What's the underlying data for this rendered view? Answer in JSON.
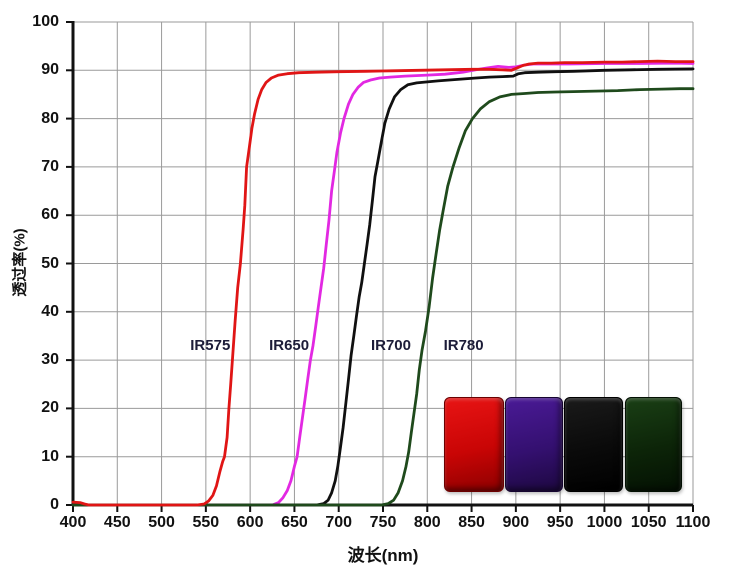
{
  "chart_data": {
    "type": "line",
    "title": "",
    "xlabel": "波长(nm)",
    "ylabel": "透过率(%)",
    "xlim": [
      400,
      1100
    ],
    "ylim": [
      0,
      100
    ],
    "x_ticks": [
      400,
      450,
      500,
      550,
      600,
      650,
      700,
      750,
      800,
      850,
      900,
      950,
      1000,
      1050,
      1100
    ],
    "y_ticks": [
      0,
      10,
      20,
      30,
      40,
      50,
      60,
      70,
      80,
      90,
      100
    ],
    "grid": true,
    "grid_color": "#9a9a9a",
    "axis_color": "#111111",
    "legend_position": "none",
    "annotation_color": "#1c1c38",
    "series": [
      {
        "name": "IR650",
        "color": "#e228e2",
        "points": [
          [
            400,
            0
          ],
          [
            500,
            0
          ],
          [
            600,
            0
          ],
          [
            625,
            0
          ],
          [
            632,
            0.5
          ],
          [
            637,
            1.5
          ],
          [
            642,
            3
          ],
          [
            646,
            5
          ],
          [
            650,
            8
          ],
          [
            653,
            10
          ],
          [
            656,
            14
          ],
          [
            659,
            18
          ],
          [
            662,
            22
          ],
          [
            665,
            26
          ],
          [
            668,
            30
          ],
          [
            671,
            33
          ],
          [
            674,
            37
          ],
          [
            677,
            41
          ],
          [
            680,
            45
          ],
          [
            683,
            49
          ],
          [
            686,
            54
          ],
          [
            689,
            59
          ],
          [
            692,
            65
          ],
          [
            695,
            69
          ],
          [
            698,
            73
          ],
          [
            702,
            77
          ],
          [
            706,
            80
          ],
          [
            711,
            83
          ],
          [
            716,
            85
          ],
          [
            722,
            86.5
          ],
          [
            728,
            87.5
          ],
          [
            736,
            88
          ],
          [
            746,
            88.4
          ],
          [
            758,
            88.6
          ],
          [
            775,
            88.8
          ],
          [
            800,
            89
          ],
          [
            820,
            89.2
          ],
          [
            840,
            89.6
          ],
          [
            855,
            90.1
          ],
          [
            868,
            90.5
          ],
          [
            880,
            90.8
          ],
          [
            892,
            90.6
          ],
          [
            900,
            90.7
          ],
          [
            910,
            91.1
          ],
          [
            920,
            91.3
          ],
          [
            940,
            91.3
          ],
          [
            960,
            91.3
          ],
          [
            1000,
            91.4
          ],
          [
            1040,
            91.4
          ],
          [
            1080,
            91.5
          ],
          [
            1100,
            91.4
          ]
        ]
      },
      {
        "name": "IR700",
        "color": "#101010",
        "points": [
          [
            400,
            0
          ],
          [
            600,
            0
          ],
          [
            675,
            0
          ],
          [
            683,
            0.3
          ],
          [
            688,
            1
          ],
          [
            692,
            2.5
          ],
          [
            696,
            5
          ],
          [
            699,
            8
          ],
          [
            702,
            12
          ],
          [
            705,
            16
          ],
          [
            708,
            21
          ],
          [
            711,
            26
          ],
          [
            714,
            31
          ],
          [
            717,
            35
          ],
          [
            720,
            39
          ],
          [
            723,
            43
          ],
          [
            726,
            46
          ],
          [
            729,
            50
          ],
          [
            732,
            54
          ],
          [
            735,
            58
          ],
          [
            738,
            63
          ],
          [
            741,
            68
          ],
          [
            744,
            71
          ],
          [
            748,
            75
          ],
          [
            752,
            79
          ],
          [
            757,
            82
          ],
          [
            763,
            84.5
          ],
          [
            770,
            86
          ],
          [
            778,
            87
          ],
          [
            788,
            87.4
          ],
          [
            800,
            87.6
          ],
          [
            812,
            87.8
          ],
          [
            825,
            88
          ],
          [
            840,
            88.2
          ],
          [
            855,
            88.4
          ],
          [
            870,
            88.6
          ],
          [
            885,
            88.7
          ],
          [
            897,
            88.8
          ],
          [
            903,
            89.3
          ],
          [
            910,
            89.5
          ],
          [
            925,
            89.6
          ],
          [
            945,
            89.7
          ],
          [
            965,
            89.8
          ],
          [
            1000,
            90
          ],
          [
            1030,
            90.1
          ],
          [
            1060,
            90.2
          ],
          [
            1100,
            90.3
          ]
        ]
      },
      {
        "name": "IR780",
        "color": "#1f4a1c",
        "points": [
          [
            400,
            0
          ],
          [
            500,
            0
          ],
          [
            560,
            0
          ],
          [
            650,
            0
          ],
          [
            700,
            0
          ],
          [
            748,
            0
          ],
          [
            756,
            0.3
          ],
          [
            762,
            1
          ],
          [
            767,
            2.5
          ],
          [
            772,
            5
          ],
          [
            776,
            8
          ],
          [
            779,
            11
          ],
          [
            782,
            15
          ],
          [
            785,
            19
          ],
          [
            788,
            23
          ],
          [
            791,
            28
          ],
          [
            794,
            32
          ],
          [
            798,
            36
          ],
          [
            802,
            41
          ],
          [
            806,
            47
          ],
          [
            810,
            52
          ],
          [
            814,
            57
          ],
          [
            818,
            61
          ],
          [
            823,
            66
          ],
          [
            829,
            70
          ],
          [
            836,
            74
          ],
          [
            843,
            77.5
          ],
          [
            851,
            80
          ],
          [
            860,
            82
          ],
          [
            870,
            83.5
          ],
          [
            882,
            84.5
          ],
          [
            895,
            85
          ],
          [
            910,
            85.2
          ],
          [
            925,
            85.4
          ],
          [
            945,
            85.5
          ],
          [
            965,
            85.6
          ],
          [
            990,
            85.7
          ],
          [
            1015,
            85.8
          ],
          [
            1040,
            86
          ],
          [
            1065,
            86.1
          ],
          [
            1085,
            86.2
          ],
          [
            1100,
            86.2
          ]
        ]
      },
      {
        "name": "IR575",
        "color": "#e01515",
        "points": [
          [
            400,
            0.6
          ],
          [
            408,
            0.5
          ],
          [
            413,
            0.2
          ],
          [
            418,
            0
          ],
          [
            460,
            0
          ],
          [
            500,
            0
          ],
          [
            540,
            0
          ],
          [
            548,
            0.2
          ],
          [
            553,
            0.8
          ],
          [
            558,
            2
          ],
          [
            562,
            4
          ],
          [
            566,
            7
          ],
          [
            569,
            9
          ],
          [
            571,
            10
          ],
          [
            574,
            14
          ],
          [
            576,
            20
          ],
          [
            578,
            25
          ],
          [
            580,
            30
          ],
          [
            583,
            38
          ],
          [
            586,
            45
          ],
          [
            589,
            50
          ],
          [
            592,
            57
          ],
          [
            594,
            62
          ],
          [
            596,
            70
          ],
          [
            599,
            74
          ],
          [
            602,
            78
          ],
          [
            605,
            81
          ],
          [
            609,
            84
          ],
          [
            613,
            86
          ],
          [
            618,
            87.5
          ],
          [
            624,
            88.4
          ],
          [
            632,
            89
          ],
          [
            642,
            89.3
          ],
          [
            655,
            89.5
          ],
          [
            675,
            89.6
          ],
          [
            700,
            89.7
          ],
          [
            730,
            89.8
          ],
          [
            760,
            89.9
          ],
          [
            790,
            90
          ],
          [
            820,
            90.1
          ],
          [
            850,
            90.2
          ],
          [
            870,
            90.2
          ],
          [
            885,
            90.1
          ],
          [
            895,
            90
          ],
          [
            900,
            90.4
          ],
          [
            908,
            91
          ],
          [
            915,
            91.3
          ],
          [
            925,
            91.5
          ],
          [
            940,
            91.5
          ],
          [
            955,
            91.6
          ],
          [
            975,
            91.6
          ],
          [
            1000,
            91.7
          ],
          [
            1020,
            91.7
          ],
          [
            1040,
            91.8
          ],
          [
            1060,
            91.9
          ],
          [
            1080,
            91.8
          ],
          [
            1100,
            91.8
          ]
        ]
      }
    ],
    "annotations": [
      {
        "text": "IR575",
        "x": 555,
        "y": 33
      },
      {
        "text": "IR650",
        "x": 644,
        "y": 33
      },
      {
        "text": "IR700",
        "x": 759,
        "y": 33
      },
      {
        "text": "IR780",
        "x": 841,
        "y": 33
      }
    ]
  },
  "swatches": [
    {
      "name": "filter-swatch-red",
      "x_range": [
        819,
        884
      ],
      "y_range": [
        3,
        22.4
      ],
      "colors": [
        "#e81414",
        "#c90505",
        "#8d0000"
      ],
      "border": "#6b0000"
    },
    {
      "name": "filter-swatch-purple",
      "x_range": [
        888,
        951
      ],
      "y_range": [
        3,
        22.4
      ],
      "colors": [
        "#4a1a96",
        "#341070",
        "#1d0840"
      ],
      "border": "#160530"
    },
    {
      "name": "filter-swatch-black",
      "x_range": [
        954,
        1019
      ],
      "y_range": [
        3,
        22.4
      ],
      "colors": [
        "#1a1a1a",
        "#0a0a0a",
        "#000000"
      ],
      "border": "#000000"
    },
    {
      "name": "filter-swatch-green",
      "x_range": [
        1023,
        1085
      ],
      "y_range": [
        3,
        22.4
      ],
      "colors": [
        "#1a3f15",
        "#0c2408",
        "#041103"
      ],
      "border": "#031003"
    }
  ]
}
